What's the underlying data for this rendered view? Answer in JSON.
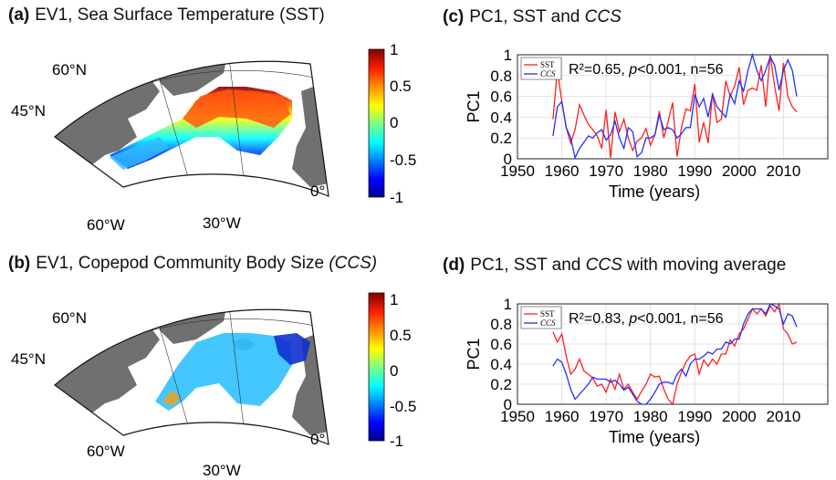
{
  "panels": {
    "a": {
      "tag": "(a)",
      "title": "EV1, Sea Surface Temperature (SST)"
    },
    "b": {
      "tag": "(b)",
      "title_pre": "EV1, Copepod Community Body Size ",
      "title_it": "(CCS)"
    },
    "c": {
      "tag": "(c)",
      "title_pre": "PC1, SST and ",
      "title_it": "CCS",
      "title_post": ""
    },
    "d": {
      "tag": "(d)",
      "title_pre": "PC1, SST and ",
      "title_it": "CCS",
      "title_post": " with moving average"
    }
  },
  "maps": {
    "lat_labels": [
      "60°N",
      "45°N"
    ],
    "lon_labels": [
      "60°W",
      "30°W",
      "0°"
    ],
    "colorbar_ticks": [
      "1",
      "0.5",
      "0",
      "-0.5",
      "-1"
    ],
    "colors": {
      "land": "#707070",
      "ocean": "#ffffff"
    }
  },
  "chart_data": [
    {
      "type": "line",
      "panel": "c",
      "xlabel": "Time (years)",
      "ylabel": "PC1",
      "xlim": [
        1950,
        2020
      ],
      "ylim": [
        0,
        1
      ],
      "xticks": [
        "1950",
        "1960",
        "1970",
        "1980",
        "1990",
        "2000",
        "2010"
      ],
      "yticks": [
        "0",
        "0.2",
        "0.4",
        "0.6",
        "0.8",
        "1"
      ],
      "grid": true,
      "legend_position": "top-left",
      "annotation": {
        "r2": "R²=0.65, ",
        "p": "p",
        "rest": "<0.001, n=56"
      },
      "series": [
        {
          "name": "SST",
          "color": "#ff2020",
          "x": [
            1958,
            1959,
            1960,
            1961,
            1962,
            1963,
            1964,
            1965,
            1966,
            1967,
            1968,
            1969,
            1970,
            1971,
            1972,
            1973,
            1974,
            1975,
            1976,
            1977,
            1978,
            1979,
            1980,
            1981,
            1982,
            1983,
            1984,
            1985,
            1986,
            1987,
            1988,
            1989,
            1990,
            1991,
            1992,
            1993,
            1994,
            1995,
            1996,
            1997,
            1998,
            1999,
            2000,
            2001,
            2002,
            2003,
            2004,
            2005,
            2006,
            2007,
            2008,
            2009,
            2010,
            2011,
            2012,
            2013
          ],
          "y": [
            0.38,
            0.86,
            0.55,
            0.3,
            0.15,
            0.28,
            0.52,
            0.42,
            0.33,
            0.28,
            0.22,
            0.1,
            0.47,
            0.01,
            0.45,
            0.26,
            0.38,
            0.2,
            0.08,
            0.17,
            0.2,
            0.29,
            0.13,
            0.23,
            0.46,
            0.2,
            0.36,
            0.54,
            0.02,
            0.3,
            0.48,
            0.46,
            0.72,
            0.16,
            0.35,
            0.15,
            0.63,
            0.35,
            0.38,
            0.75,
            0.6,
            0.7,
            0.88,
            0.52,
            0.66,
            0.68,
            0.66,
            0.9,
            0.5,
            1.0,
            0.7,
            0.46,
            0.92,
            0.6,
            0.5,
            0.45
          ]
        },
        {
          "name": "CCS",
          "color": "#2030ff",
          "x": [
            1958,
            1959,
            1960,
            1961,
            1962,
            1963,
            1964,
            1965,
            1966,
            1967,
            1968,
            1969,
            1970,
            1971,
            1972,
            1973,
            1974,
            1975,
            1976,
            1977,
            1978,
            1979,
            1980,
            1981,
            1982,
            1983,
            1984,
            1985,
            1986,
            1987,
            1988,
            1989,
            1990,
            1991,
            1992,
            1993,
            1994,
            1995,
            1996,
            1997,
            1998,
            1999,
            2000,
            2001,
            2002,
            2003,
            2004,
            2005,
            2006,
            2007,
            2008,
            2009,
            2010,
            2011,
            2012,
            2013
          ],
          "y": [
            0.22,
            0.5,
            0.55,
            0.3,
            0.2,
            0.01,
            0.1,
            0.16,
            0.22,
            0.2,
            0.25,
            0.28,
            0.18,
            0.23,
            0.36,
            0.2,
            0.1,
            0.3,
            0.26,
            0.02,
            0.06,
            0.2,
            0.2,
            0.23,
            0.42,
            0.28,
            0.3,
            0.28,
            0.2,
            0.24,
            0.3,
            0.3,
            0.62,
            0.5,
            0.58,
            0.4,
            0.62,
            0.5,
            0.45,
            0.4,
            0.62,
            0.53,
            0.75,
            0.65,
            0.85,
            1.0,
            0.85,
            0.75,
            0.85,
            0.98,
            0.9,
            0.66,
            0.85,
            0.95,
            0.85,
            0.6
          ]
        }
      ]
    },
    {
      "type": "line",
      "panel": "d",
      "xlabel": "Time (years)",
      "ylabel": "PC1",
      "xlim": [
        1950,
        2020
      ],
      "ylim": [
        0,
        1
      ],
      "xticks": [
        "1950",
        "1960",
        "1970",
        "1980",
        "1990",
        "2000",
        "2010"
      ],
      "yticks": [
        "0",
        "0.2",
        "0.4",
        "0.6",
        "0.8",
        "1"
      ],
      "grid": true,
      "legend_position": "top-left",
      "annotation": {
        "r2": "R²=0.83, ",
        "p": "p",
        "rest": "<0.001, n=56"
      },
      "series": [
        {
          "name": "SST",
          "color": "#ff2020",
          "x": [
            1958,
            1959,
            1960,
            1961,
            1962,
            1963,
            1964,
            1965,
            1966,
            1967,
            1968,
            1969,
            1970,
            1971,
            1972,
            1973,
            1974,
            1975,
            1976,
            1977,
            1978,
            1979,
            1980,
            1981,
            1982,
            1983,
            1984,
            1985,
            1986,
            1987,
            1988,
            1989,
            1990,
            1991,
            1992,
            1993,
            1994,
            1995,
            1996,
            1997,
            1998,
            1999,
            2000,
            2001,
            2002,
            2003,
            2004,
            2005,
            2006,
            2007,
            2008,
            2009,
            2010,
            2011,
            2012,
            2013
          ],
          "y": [
            0.72,
            0.62,
            0.7,
            0.48,
            0.3,
            0.35,
            0.45,
            0.33,
            0.3,
            0.26,
            0.18,
            0.2,
            0.12,
            0.25,
            0.15,
            0.3,
            0.15,
            0.2,
            0.12,
            0.05,
            0.13,
            0.2,
            0.3,
            0.27,
            0.28,
            0.15,
            0.05,
            0.0,
            0.2,
            0.32,
            0.42,
            0.48,
            0.5,
            0.3,
            0.44,
            0.38,
            0.45,
            0.4,
            0.5,
            0.5,
            0.64,
            0.58,
            0.7,
            0.75,
            0.85,
            0.95,
            0.9,
            0.95,
            0.88,
            0.98,
            0.92,
            1.0,
            0.75,
            0.7,
            0.6,
            0.62
          ]
        },
        {
          "name": "CCS",
          "color": "#2030ff",
          "x": [
            1958,
            1959,
            1960,
            1961,
            1962,
            1963,
            1964,
            1965,
            1966,
            1967,
            1968,
            1969,
            1970,
            1971,
            1972,
            1973,
            1974,
            1975,
            1976,
            1977,
            1978,
            1979,
            1980,
            1981,
            1982,
            1983,
            1984,
            1985,
            1986,
            1987,
            1988,
            1989,
            1990,
            1991,
            1992,
            1993,
            1994,
            1995,
            1996,
            1997,
            1998,
            1999,
            2000,
            2001,
            2002,
            2003,
            2004,
            2005,
            2006,
            2007,
            2008,
            2009,
            2010,
            2011,
            2012,
            2013
          ],
          "y": [
            0.38,
            0.45,
            0.42,
            0.3,
            0.15,
            0.05,
            0.1,
            0.15,
            0.2,
            0.27,
            0.25,
            0.25,
            0.25,
            0.22,
            0.24,
            0.2,
            0.14,
            0.17,
            0.1,
            0.03,
            0.0,
            0.0,
            0.05,
            0.12,
            0.2,
            0.22,
            0.22,
            0.2,
            0.3,
            0.35,
            0.28,
            0.4,
            0.45,
            0.45,
            0.48,
            0.52,
            0.5,
            0.55,
            0.55,
            0.62,
            0.6,
            0.65,
            0.65,
            0.8,
            0.9,
            0.95,
            0.95,
            0.95,
            0.9,
            1.0,
            0.98,
            0.95,
            0.8,
            0.9,
            0.88,
            0.77
          ]
        }
      ]
    }
  ]
}
